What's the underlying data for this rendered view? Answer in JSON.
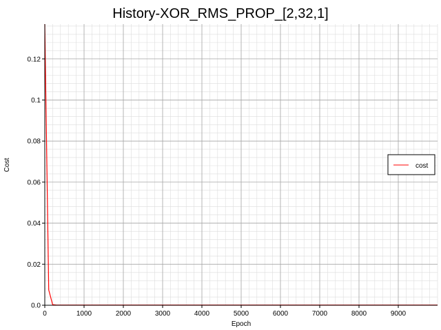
{
  "chart_data": {
    "type": "line",
    "title": "History-XOR_RMS_PROP_[2,32,1]",
    "xlabel": "Epoch",
    "ylabel": "Cost",
    "xlim": [
      0,
      10000
    ],
    "ylim": [
      0,
      0.137
    ],
    "xticks": [
      0,
      1000,
      2000,
      3000,
      4000,
      5000,
      6000,
      7000,
      8000,
      9000
    ],
    "yticks": [
      0.0,
      0.02,
      0.04,
      0.06,
      0.08,
      0.1,
      0.12
    ],
    "ytick_labels": [
      "0.0",
      "0.02",
      "0.04",
      "0.06",
      "0.08",
      "0.1",
      "0.12"
    ],
    "grid": true,
    "minor_grid": true,
    "legend_position": "right",
    "series": [
      {
        "name": "cost",
        "color": "#ff0000",
        "x": [
          0,
          100,
          200,
          300,
          500,
          1000,
          2000,
          3000,
          4000,
          5000,
          6000,
          7000,
          8000,
          9000,
          10000
        ],
        "y": [
          0.137,
          0.0075,
          0.0003,
          0.0001,
          0.0001,
          0.0001,
          0.0001,
          0.0001,
          0.0001,
          0.0001,
          0.0001,
          0.0001,
          0.0001,
          0.0001,
          0.0001
        ]
      }
    ]
  }
}
